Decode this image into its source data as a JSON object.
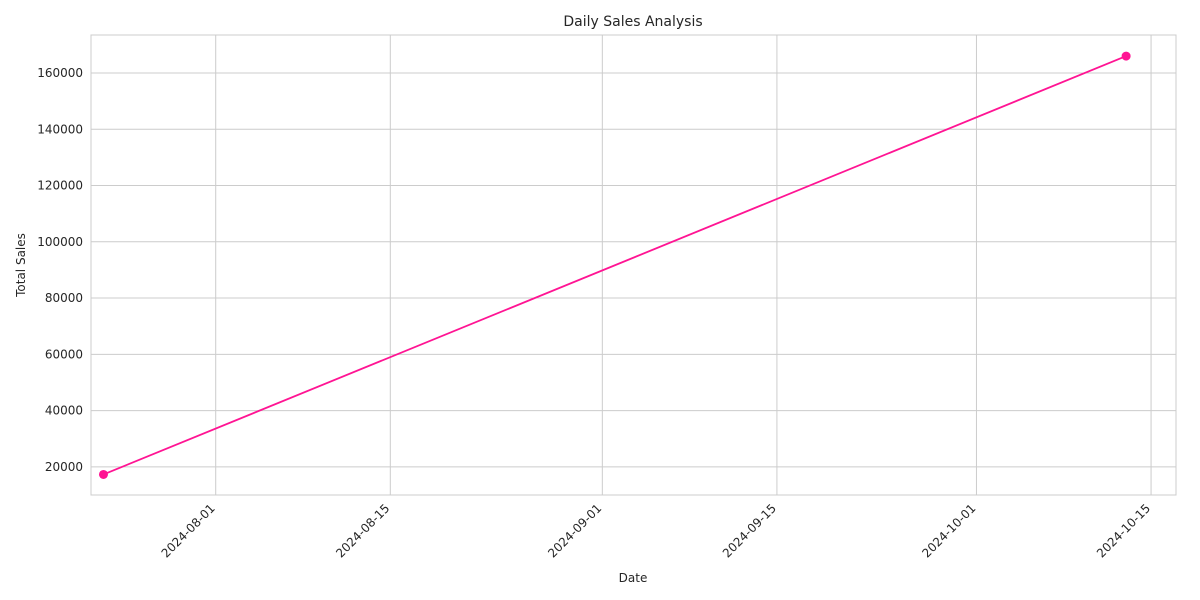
{
  "chart_data": {
    "type": "line",
    "title": "Daily Sales Analysis",
    "xlabel": "Date",
    "ylabel": "Total Sales",
    "x_type": "date",
    "xlim": [
      "2024-07-22",
      "2024-10-17"
    ],
    "ylim": [
      10000,
      173500
    ],
    "x_ticks": [
      "2024-08-01",
      "2024-08-15",
      "2024-09-01",
      "2024-09-15",
      "2024-10-01",
      "2024-10-15"
    ],
    "y_ticks": [
      20000,
      40000,
      60000,
      80000,
      100000,
      120000,
      140000,
      160000
    ],
    "grid": true,
    "legend": "none",
    "series": [
      {
        "color": "#ff1493",
        "marker": "circle",
        "x": [
          "2024-07-23",
          "2024-10-13"
        ],
        "y": [
          17300,
          166000
        ]
      }
    ]
  }
}
